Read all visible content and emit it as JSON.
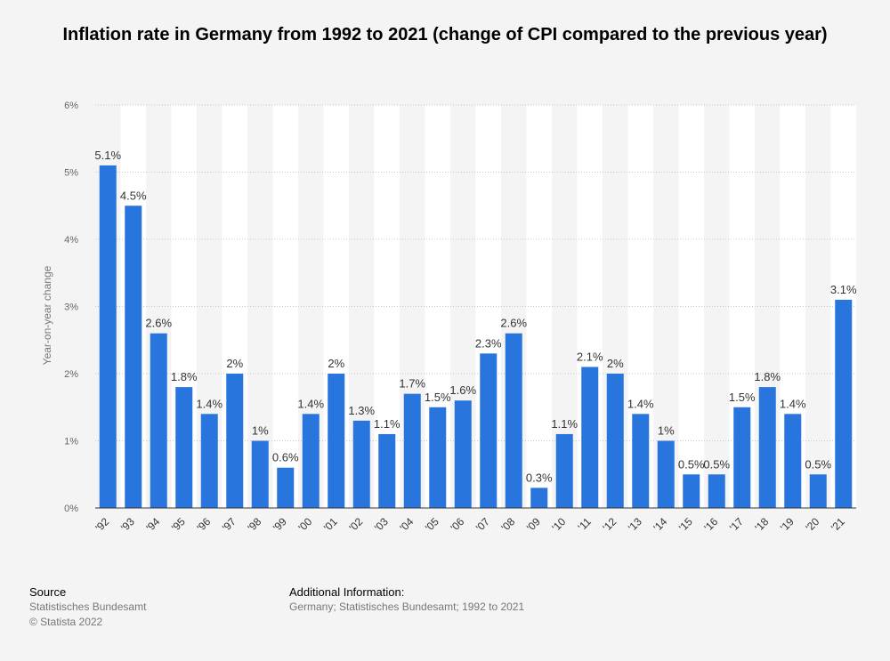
{
  "chart_data": {
    "type": "bar",
    "title": "Inflation rate in Germany from 1992 to 2021 (change of CPI compared to the previous year)",
    "ylabel": "Year-on-year change",
    "xlabel": "",
    "ylim": [
      0,
      6
    ],
    "yticks": [
      "0%",
      "1%",
      "2%",
      "3%",
      "4%",
      "5%",
      "6%"
    ],
    "categories": [
      "'92",
      "'93",
      "'94",
      "'95",
      "'96",
      "'97",
      "'98",
      "'99",
      "'00",
      "'01",
      "'02",
      "'03",
      "'04",
      "'05",
      "'06",
      "'07",
      "'08",
      "'09",
      "'10",
      "'11",
      "'12",
      "'13",
      "'14",
      "'15",
      "'16",
      "'17",
      "'18",
      "'19",
      "'20",
      "'21"
    ],
    "values": [
      5.1,
      4.5,
      2.6,
      1.8,
      1.4,
      2.0,
      1.0,
      0.6,
      1.4,
      2.0,
      1.3,
      1.1,
      1.7,
      1.5,
      1.6,
      2.3,
      2.6,
      0.3,
      1.1,
      2.1,
      2.0,
      1.4,
      1.0,
      0.5,
      0.5,
      1.5,
      1.8,
      1.4,
      0.5,
      3.1
    ],
    "data_labels": [
      "5.1%",
      "4.5%",
      "2.6%",
      "1.8%",
      "1.4%",
      "2%",
      "1%",
      "0.6%",
      "1.4%",
      "2%",
      "1.3%",
      "1.1%",
      "1.7%",
      "1.5%",
      "1.6%",
      "2.3%",
      "2.6%",
      "0.3%",
      "1.1%",
      "2.1%",
      "2%",
      "1.4%",
      "1%",
      "0.5%",
      "0.5%",
      "1.5%",
      "1.8%",
      "1.4%",
      "0.5%",
      "3.1%"
    ],
    "grid": true,
    "bar_color": "#2876dd"
  },
  "footer": {
    "source_title": "Source",
    "source_lines": [
      "Statistisches Bundesamt",
      "© Statista 2022"
    ],
    "info_title": "Additional Information:",
    "info_text": "Germany; Statistisches Bundesamt; 1992 to 2021"
  }
}
